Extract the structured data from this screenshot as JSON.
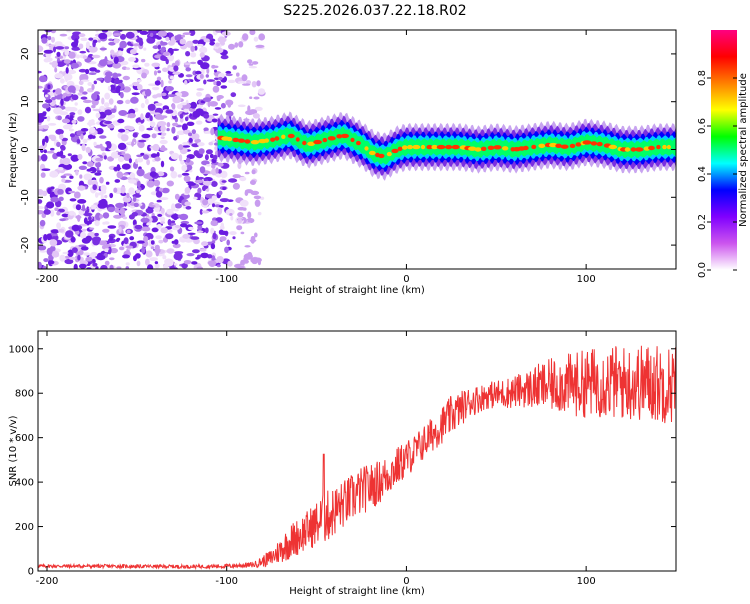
{
  "title": "S225.2026.037.22.18.R02",
  "colors": {
    "snr_line": "#ee3333",
    "noise_purple": "#6a1be0",
    "axis": "#000000"
  },
  "chart_data": [
    {
      "type": "heatmap",
      "name": "spectrogram",
      "xlabel": "Height of straight line (km)",
      "ylabel": "Frequency (Hz)",
      "xlim": [
        -205,
        150
      ],
      "ylim": [
        -25,
        25
      ],
      "x_ticks": [
        -200,
        -100,
        0,
        100
      ],
      "x_tick_labels": [
        "-200",
        "-100",
        "0",
        "100"
      ],
      "y_ticks": [
        -20,
        -10,
        0,
        10,
        20
      ],
      "y_tick_labels": [
        "-20",
        "-10",
        "0",
        "10",
        "20"
      ],
      "noise_region_x": [
        -205,
        -80
      ],
      "signal_track": {
        "x": [
          -105,
          -95,
          -85,
          -75,
          -65,
          -55,
          -45,
          -35,
          -25,
          -18,
          -12,
          -5,
          0,
          10,
          20,
          30,
          40,
          50,
          60,
          70,
          80,
          90,
          100,
          110,
          120,
          130,
          140,
          150
        ],
        "hz": [
          2.5,
          2.0,
          1.5,
          2.0,
          3.0,
          1.0,
          2.0,
          3.0,
          1.0,
          -1.0,
          -1.5,
          0.0,
          0.5,
          0.5,
          0.5,
          0.5,
          0.0,
          0.5,
          0.0,
          0.5,
          1.0,
          0.5,
          1.5,
          1.0,
          0.0,
          0.0,
          0.5,
          0.5
        ]
      },
      "colorbar": {
        "label": "Normalized spectral amplitude",
        "range": [
          0,
          1
        ],
        "ticks": [
          0.0,
          0.2,
          0.4,
          0.6,
          0.8
        ],
        "tick_labels": [
          "0.0",
          "0.2",
          "0.4",
          "0.6",
          "0.8"
        ],
        "stops": [
          "#ffffff",
          "#cc55ee",
          "#8000ff",
          "#0000ff",
          "#00ffff",
          "#00ff00",
          "#ffff00",
          "#ff8000",
          "#ff0000",
          "#ff0080"
        ]
      }
    },
    {
      "type": "line",
      "name": "snr",
      "xlabel": "Height of straight line (km)",
      "ylabel": "SNR (10 * v/v)",
      "xlim": [
        -205,
        150
      ],
      "ylim": [
        0,
        1080
      ],
      "x_ticks": [
        -200,
        -100,
        0,
        100
      ],
      "x_tick_labels": [
        "-200",
        "-100",
        "0",
        "100"
      ],
      "y_ticks": [
        0,
        200,
        400,
        600,
        800,
        1000
      ],
      "y_tick_labels": [
        "0",
        "200",
        "400",
        "600",
        "800",
        "1000"
      ],
      "series": [
        {
          "name": "SNR",
          "x": [
            -205,
            -180,
            -150,
            -120,
            -100,
            -85,
            -75,
            -65,
            -55,
            -45,
            -35,
            -25,
            -15,
            -5,
            5,
            15,
            25,
            35,
            45,
            55,
            65,
            75,
            85,
            95,
            105,
            115,
            125,
            135,
            145,
            150
          ],
          "y": [
            22,
            22,
            21,
            20,
            22,
            28,
            60,
            130,
            185,
            240,
            300,
            360,
            400,
            470,
            540,
            620,
            700,
            760,
            790,
            800,
            815,
            830,
            840,
            840,
            850,
            850,
            845,
            850,
            840,
            845
          ],
          "spread": [
            8,
            8,
            8,
            8,
            10,
            12,
            40,
            80,
            90,
            120,
            110,
            110,
            100,
            90,
            80,
            80,
            90,
            70,
            60,
            70,
            80,
            110,
            130,
            150,
            160,
            170,
            170,
            180,
            180,
            180
          ]
        }
      ],
      "spike": {
        "x": -46,
        "y": 525
      }
    }
  ]
}
